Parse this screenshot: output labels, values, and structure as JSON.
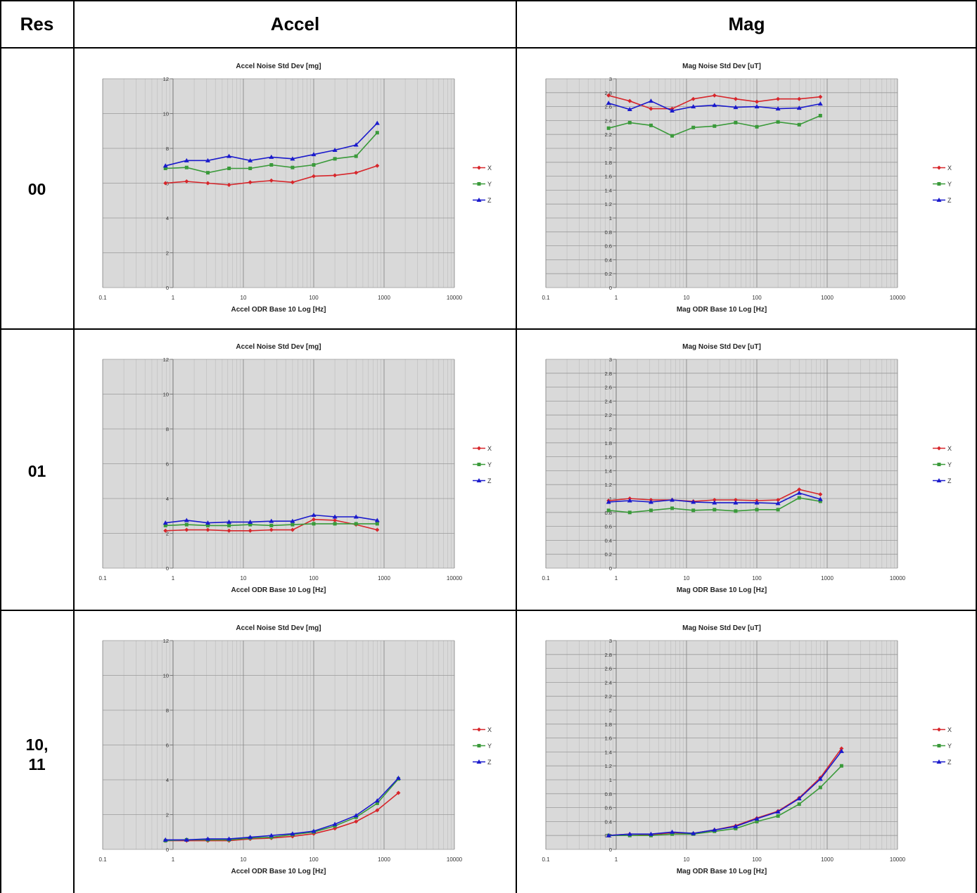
{
  "header": {
    "res": "Res",
    "accel": "Accel",
    "mag": "Mag"
  },
  "rows": [
    {
      "label": "00"
    },
    {
      "label": "01"
    },
    {
      "label": "10,\n11"
    }
  ],
  "colors": {
    "X": "#d7262b",
    "Y": "#3a9a3a",
    "Z": "#1a1acc",
    "plot_bg": "#d9d9d9",
    "grid": "#aaaaaa"
  },
  "legend": [
    "X",
    "Y",
    "Z"
  ],
  "chart_data": [
    {
      "id": "accel-00",
      "type": "line",
      "title": "Accel Noise Std Dev  [mg]",
      "xlabel": "Accel ODR Base 10 Log [Hz]",
      "xscale": "log",
      "xlim": [
        0.1,
        10000
      ],
      "ylim": [
        0,
        12
      ],
      "xticks": [
        "0.1",
        "1",
        "10",
        "100",
        "1000",
        "10000"
      ],
      "yticks": [
        "0",
        "2",
        "4",
        "6",
        "8",
        "10",
        "12"
      ],
      "x": [
        0.78,
        1.56,
        3.125,
        6.25,
        12.5,
        25,
        50,
        100,
        200,
        400,
        800
      ],
      "series": [
        {
          "name": "X",
          "values": [
            6.0,
            6.1,
            6.0,
            5.9,
            6.05,
            6.15,
            6.05,
            6.4,
            6.45,
            6.6,
            7.0
          ]
        },
        {
          "name": "Y",
          "values": [
            6.85,
            6.9,
            6.6,
            6.85,
            6.85,
            7.05,
            6.9,
            7.05,
            7.4,
            7.55,
            8.9
          ]
        },
        {
          "name": "Z",
          "values": [
            7.0,
            7.3,
            7.3,
            7.55,
            7.3,
            7.5,
            7.4,
            7.65,
            7.9,
            8.2,
            9.45
          ]
        }
      ],
      "grid": true,
      "legend": "right"
    },
    {
      "id": "mag-00",
      "type": "line",
      "title": "Mag Noise Std Dev  [uT]",
      "xlabel": "Mag ODR Base 10 Log [Hz]",
      "xscale": "log",
      "xlim": [
        0.1,
        10000
      ],
      "ylim": [
        0,
        3
      ],
      "xticks": [
        "0.1",
        "1",
        "10",
        "100",
        "1000",
        "10000"
      ],
      "yticks": [
        "0",
        "0.2",
        "0.4",
        "0.6",
        "0.8",
        "1",
        "1.2",
        "1.4",
        "1.6",
        "1.8",
        "2",
        "2.2",
        "2.4",
        "2.6",
        "2.8",
        "3"
      ],
      "x": [
        0.78,
        1.56,
        3.125,
        6.25,
        12.5,
        25,
        50,
        100,
        200,
        400,
        800
      ],
      "series": [
        {
          "name": "X",
          "values": [
            2.76,
            2.68,
            2.57,
            2.57,
            2.71,
            2.76,
            2.71,
            2.67,
            2.71,
            2.71,
            2.74
          ]
        },
        {
          "name": "Y",
          "values": [
            2.29,
            2.37,
            2.33,
            2.18,
            2.3,
            2.32,
            2.37,
            2.31,
            2.38,
            2.34,
            2.47
          ]
        },
        {
          "name": "Z",
          "values": [
            2.65,
            2.56,
            2.68,
            2.54,
            2.6,
            2.62,
            2.59,
            2.6,
            2.57,
            2.58,
            2.64
          ]
        }
      ],
      "grid": true,
      "legend": "right"
    },
    {
      "id": "accel-01",
      "type": "line",
      "title": "Accel Noise Std Dev  [mg]",
      "xlabel": "Accel ODR Base 10 Log [Hz]",
      "xscale": "log",
      "xlim": [
        0.1,
        10000
      ],
      "ylim": [
        0,
        12
      ],
      "xticks": [
        "0.1",
        "1",
        "10",
        "100",
        "1000",
        "10000"
      ],
      "yticks": [
        "0",
        "2",
        "4",
        "6",
        "8",
        "10",
        "12"
      ],
      "x": [
        0.78,
        1.56,
        3.125,
        6.25,
        12.5,
        25,
        50,
        100,
        200,
        400,
        800
      ],
      "series": [
        {
          "name": "X",
          "values": [
            2.15,
            2.2,
            2.2,
            2.15,
            2.15,
            2.2,
            2.2,
            2.8,
            2.75,
            2.5,
            2.2
          ]
        },
        {
          "name": "Y",
          "values": [
            2.45,
            2.5,
            2.45,
            2.45,
            2.5,
            2.45,
            2.5,
            2.55,
            2.55,
            2.55,
            2.55
          ]
        },
        {
          "name": "Z",
          "values": [
            2.6,
            2.75,
            2.6,
            2.65,
            2.65,
            2.7,
            2.7,
            3.05,
            2.95,
            2.95,
            2.75
          ]
        }
      ],
      "grid": true,
      "legend": "right"
    },
    {
      "id": "mag-01",
      "type": "line",
      "title": "Mag Noise Std Dev  [uT]",
      "xlabel": "Mag ODR Base 10 Log [Hz]",
      "xscale": "log",
      "xlim": [
        0.1,
        10000
      ],
      "ylim": [
        0,
        3
      ],
      "xticks": [
        "0.1",
        "1",
        "10",
        "100",
        "1000",
        "10000"
      ],
      "yticks": [
        "0",
        "0.2",
        "0.4",
        "0.6",
        "0.8",
        "1",
        "1.2",
        "1.4",
        "1.6",
        "1.8",
        "2",
        "2.2",
        "2.4",
        "2.6",
        "2.8",
        "3"
      ],
      "x": [
        0.78,
        1.56,
        3.125,
        6.25,
        12.5,
        25,
        50,
        100,
        200,
        400,
        800
      ],
      "series": [
        {
          "name": "X",
          "values": [
            0.97,
            1.0,
            0.98,
            0.98,
            0.96,
            0.98,
            0.98,
            0.97,
            0.98,
            1.13,
            1.06
          ]
        },
        {
          "name": "Y",
          "values": [
            0.83,
            0.8,
            0.83,
            0.86,
            0.83,
            0.84,
            0.82,
            0.84,
            0.84,
            1.01,
            0.96
          ]
        },
        {
          "name": "Z",
          "values": [
            0.95,
            0.97,
            0.95,
            0.98,
            0.95,
            0.94,
            0.94,
            0.94,
            0.93,
            1.08,
            0.99
          ]
        }
      ],
      "grid": true,
      "legend": "right"
    },
    {
      "id": "accel-10-11",
      "type": "line",
      "title": "Accel Noise Std Dev  [mg]",
      "xlabel": "Accel ODR Base 10 Log [Hz]",
      "xscale": "log",
      "xlim": [
        0.1,
        10000
      ],
      "ylim": [
        0,
        12
      ],
      "xticks": [
        "0.1",
        "1",
        "10",
        "100",
        "1000",
        "10000"
      ],
      "yticks": [
        "0",
        "2",
        "4",
        "6",
        "8",
        "10",
        "12"
      ],
      "x": [
        0.78,
        1.56,
        3.125,
        6.25,
        12.5,
        25,
        50,
        100,
        200,
        400,
        800,
        1600
      ],
      "series": [
        {
          "name": "X",
          "values": [
            0.5,
            0.5,
            0.5,
            0.5,
            0.6,
            0.65,
            0.75,
            0.9,
            1.2,
            1.6,
            2.25,
            3.25
          ]
        },
        {
          "name": "Y",
          "values": [
            0.5,
            0.55,
            0.55,
            0.55,
            0.65,
            0.7,
            0.85,
            1.0,
            1.35,
            1.85,
            2.65,
            4.05
          ]
        },
        {
          "name": "Z",
          "values": [
            0.55,
            0.55,
            0.6,
            0.6,
            0.7,
            0.8,
            0.9,
            1.05,
            1.45,
            1.95,
            2.8,
            4.1
          ]
        }
      ],
      "grid": true,
      "legend": "right"
    },
    {
      "id": "mag-10-11",
      "type": "line",
      "title": "Mag Noise Std Dev  [uT]",
      "xlabel": "Mag ODR Base 10 Log [Hz]",
      "xscale": "log",
      "xlim": [
        0.1,
        10000
      ],
      "ylim": [
        0,
        3
      ],
      "xticks": [
        "0.1",
        "1",
        "10",
        "100",
        "1000",
        "10000"
      ],
      "yticks": [
        "0",
        "0.2",
        "0.4",
        "0.6",
        "0.8",
        "1",
        "1.2",
        "1.4",
        "1.6",
        "1.8",
        "2",
        "2.2",
        "2.4",
        "2.6",
        "2.8",
        "3"
      ],
      "x": [
        0.78,
        1.56,
        3.125,
        6.25,
        12.5,
        25,
        50,
        100,
        200,
        400,
        800,
        1600
      ],
      "series": [
        {
          "name": "X",
          "values": [
            0.2,
            0.22,
            0.21,
            0.24,
            0.23,
            0.28,
            0.34,
            0.45,
            0.55,
            0.74,
            1.03,
            1.45
          ]
        },
        {
          "name": "Y",
          "values": [
            0.2,
            0.2,
            0.2,
            0.22,
            0.22,
            0.26,
            0.3,
            0.4,
            0.48,
            0.65,
            0.89,
            1.2
          ]
        },
        {
          "name": "Z",
          "values": [
            0.2,
            0.22,
            0.22,
            0.25,
            0.23,
            0.28,
            0.33,
            0.44,
            0.54,
            0.73,
            1.01,
            1.41
          ]
        }
      ],
      "grid": true,
      "legend": "right"
    }
  ]
}
